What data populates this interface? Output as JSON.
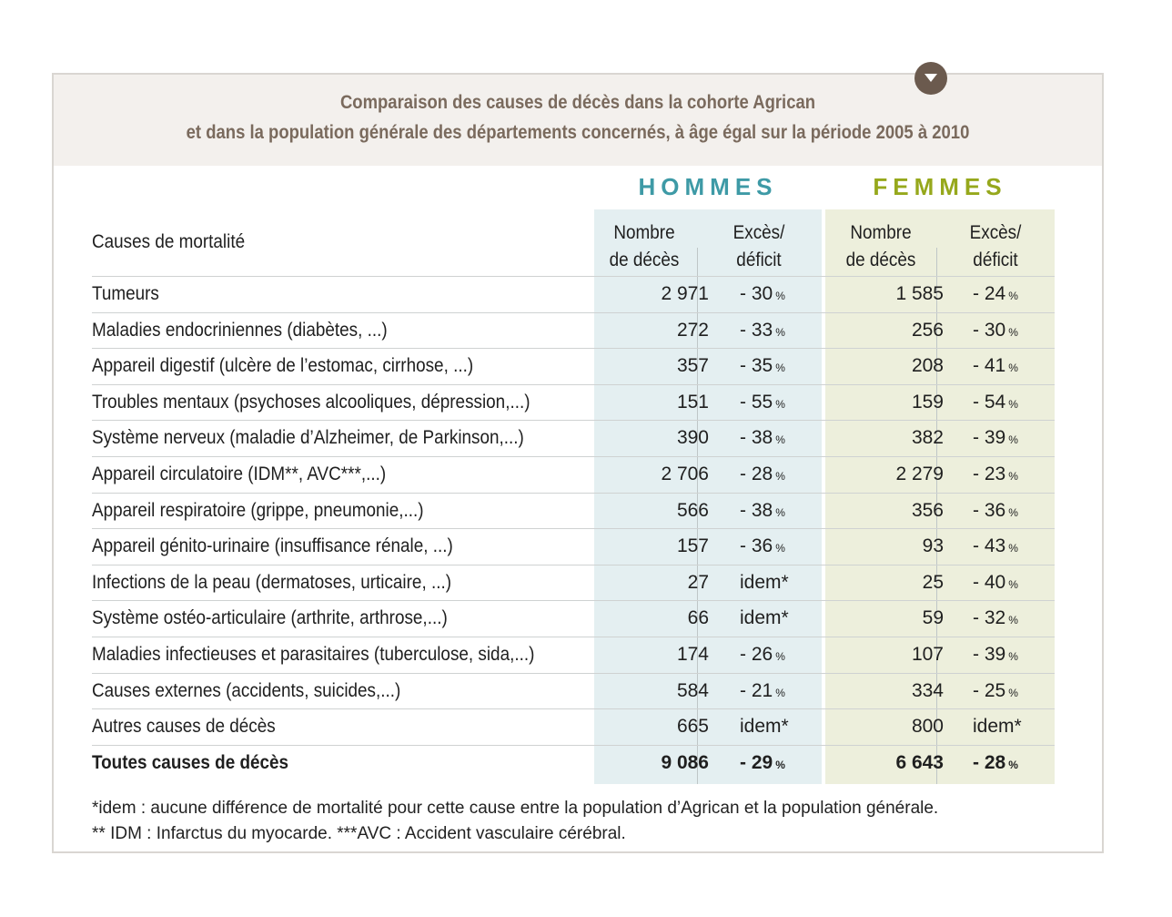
{
  "title": {
    "line1": "Comparaison des causes de décès dans la cohorte Agrican",
    "line2": "et dans la population générale des départements concernés, à âge égal sur la période 2005 à 2010"
  },
  "groups": {
    "hommes": "HOMMES",
    "femmes": "FEMMES"
  },
  "columns": {
    "causes": "Causes de mortalité",
    "nombre_l1": "Nombre",
    "nombre_l2": "de décès",
    "exces_l1": "Excès/",
    "exces_l2": "déficit"
  },
  "rows": [
    {
      "cause": "Tumeurs",
      "h_n": "2 971",
      "h_e": "- 30",
      "h_pct": "%",
      "f_n": "1 585",
      "f_e": "- 24",
      "f_pct": "%"
    },
    {
      "cause": "Maladies endocriniennes (diabètes, ...)",
      "h_n": "272",
      "h_e": "- 33",
      "h_pct": "%",
      "f_n": "256",
      "f_e": "- 30",
      "f_pct": "%"
    },
    {
      "cause": "Appareil digestif (ulcère de l’estomac, cirrhose, ...)",
      "h_n": "357",
      "h_e": "- 35",
      "h_pct": "%",
      "f_n": "208",
      "f_e": "- 41",
      "f_pct": "%"
    },
    {
      "cause": "Troubles mentaux (psychoses alcooliques, dépression,...)",
      "h_n": "151",
      "h_e": "- 55",
      "h_pct": "%",
      "f_n": "159",
      "f_e": "- 54",
      "f_pct": "%"
    },
    {
      "cause": "Système nerveux (maladie d’Alzheimer, de Parkinson,...)",
      "h_n": "390",
      "h_e": "- 38",
      "h_pct": "%",
      "f_n": "382",
      "f_e": "- 39",
      "f_pct": "%"
    },
    {
      "cause": "Appareil circulatoire (IDM**, AVC***,...)",
      "h_n": "2 706",
      "h_e": "- 28",
      "h_pct": "%",
      "f_n": "2 279",
      "f_e": "- 23",
      "f_pct": "%"
    },
    {
      "cause": "Appareil respiratoire (grippe, pneumonie,...)",
      "h_n": "566",
      "h_e": "- 38",
      "h_pct": "%",
      "f_n": "356",
      "f_e": "- 36",
      "f_pct": "%"
    },
    {
      "cause": "Appareil génito-urinaire (insuffisance rénale, ...)",
      "h_n": "157",
      "h_e": "- 36",
      "h_pct": "%",
      "f_n": "93",
      "f_e": "- 43",
      "f_pct": "%"
    },
    {
      "cause": "Infections de la peau (dermatoses, urticaire, ...)",
      "h_n": "27",
      "h_e": "idem*",
      "h_pct": "",
      "f_n": "25",
      "f_e": "- 40",
      "f_pct": "%"
    },
    {
      "cause": "Système ostéo-articulaire (arthrite, arthrose,...)",
      "h_n": "66",
      "h_e": "idem*",
      "h_pct": "",
      "f_n": "59",
      "f_e": "- 32",
      "f_pct": "%"
    },
    {
      "cause": "Maladies infectieuses et parasitaires (tuberculose, sida,...)",
      "h_n": "174",
      "h_e": "- 26",
      "h_pct": "%",
      "f_n": "107",
      "f_e": "- 39",
      "f_pct": "%"
    },
    {
      "cause": "Causes externes (accidents, suicides,...)",
      "h_n": "584",
      "h_e": "- 21",
      "h_pct": "%",
      "f_n": "334",
      "f_e": "- 25",
      "f_pct": "%"
    },
    {
      "cause": "Autres causes de décès",
      "h_n": "665",
      "h_e": "idem*",
      "h_pct": "",
      "f_n": "800",
      "f_e": "idem*",
      "f_pct": ""
    },
    {
      "cause": "Toutes causes de décès",
      "h_n": "9 086",
      "h_e": "- 29",
      "h_pct": "%",
      "f_n": "6 643",
      "f_e": "- 28",
      "f_pct": "%"
    }
  ],
  "footnotes": {
    "line1": "*idem : aucune différence de mortalité pour cette cause entre la population d’Agrican et la population générale.",
    "line2": "** IDM : Infarctus du myocarde. ***AVC : Accident vasculaire cérébral."
  },
  "colors": {
    "hommes": "#3e9aa6",
    "femmes": "#96a81c",
    "title": "#7a6a5d"
  }
}
